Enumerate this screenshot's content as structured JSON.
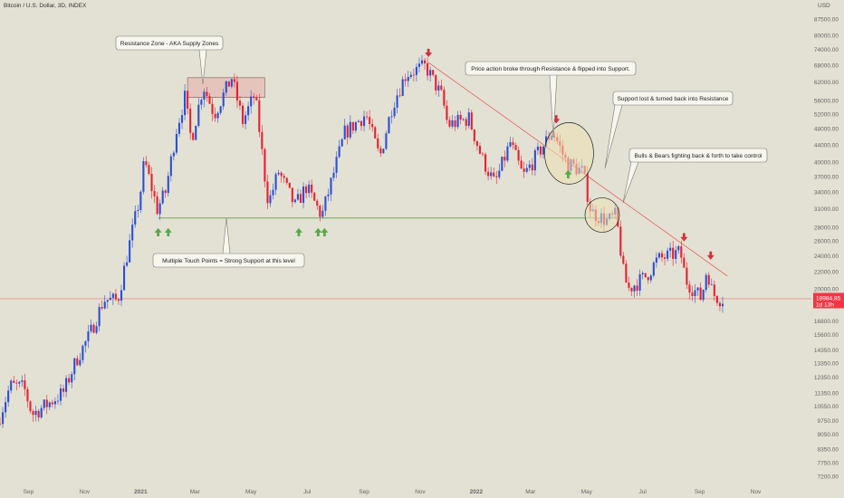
{
  "header": {
    "title": "Bitcoin / U.S. Dollar, 3D, INDEX",
    "currency": "USD"
  },
  "colors": {
    "background": "#e3e1d3",
    "up": "#2a4fd6",
    "down": "#e8202f",
    "support_line": "#5aa44b",
    "trend_line": "#e05555",
    "supply_zone": "#e6b9b4",
    "zone_circle": "#ece2b3",
    "arrow_up": "#56a94a",
    "arrow_down": "#d32f3a",
    "price_tag": "#f23645"
  },
  "price_tag": {
    "price": "18984.85",
    "countdown": "1d 13h"
  },
  "annotations": {
    "supply": "Resistance Zone - AKA Supply Zones",
    "support": "Multiple Touch Points = Strong Support at this level",
    "broke": "Price action broke through Resistance & flipped into Support.",
    "lost": "Support lost & turned back into Resistance",
    "fight": "Bulls & Bears fighting back & forth to take control"
  },
  "chart_data": {
    "type": "candlestick",
    "title": "Bitcoin / U.S. Dollar, 3D, INDEX",
    "y_scale": "log",
    "ylabel": "USD",
    "ylim": [
      6800,
      98000
    ],
    "x_ticks": [
      "Sep",
      "Nov",
      "2021",
      "Mar",
      "May",
      "Jul",
      "Sep",
      "Nov",
      "2022",
      "Mar",
      "May",
      "Jul",
      "Sep",
      "Nov"
    ],
    "y_ticks": [
      "87500.00",
      "80000.00",
      "74000.00",
      "68000.00",
      "62000.00",
      "56000.00",
      "52000.00",
      "48000.00",
      "44000.00",
      "40000.00",
      "37000.00",
      "34000.00",
      "31000.00",
      "28000.00",
      "26000.00",
      "24000.00",
      "22000.00",
      "20000.00",
      "18700.00",
      "16800.00",
      "15600.00",
      "14350.00",
      "13350.00",
      "12350.00",
      "11350.00",
      "10550.00",
      "9750.00",
      "9050.00",
      "8350.00",
      "7750.00",
      "7200.00"
    ],
    "support_level": 29500,
    "supply_zone": {
      "start": "2021-02-21",
      "end": "2021-05-16",
      "low": 57000,
      "high": 63500
    },
    "trendline": {
      "from": {
        "date": "2021-11-10",
        "price": 69000
      },
      "to": {
        "date": "2022-10-01",
        "price": 21500
      }
    },
    "last_price": 18984.85,
    "down_arrows": [
      {
        "date": "2021-11-10",
        "price": 69000
      },
      {
        "date": "2022-03-29",
        "price": 48000
      },
      {
        "date": "2022-08-15",
        "price": 25200
      },
      {
        "date": "2022-09-13",
        "price": 22800
      }
    ],
    "up_arrows": [
      {
        "date": "2021-01-20",
        "price": 29500
      },
      {
        "date": "2021-01-31",
        "price": 29500
      },
      {
        "date": "2021-06-22",
        "price": 29500
      },
      {
        "date": "2021-07-13",
        "price": 29500
      },
      {
        "date": "2021-07-20",
        "price": 29500
      },
      {
        "date": "2022-04-11",
        "price": 40500
      }
    ],
    "circles": [
      {
        "date": "2022-04-12",
        "price": 42000
      },
      {
        "date": "2022-05-18",
        "price": 30000
      }
    ],
    "path_anchors": [
      [
        "2020-08-01",
        9600
      ],
      [
        "2020-08-15",
        11800
      ],
      [
        "2020-08-30",
        11700
      ],
      [
        "2020-09-08",
        10100
      ],
      [
        "2020-09-28",
        10800
      ],
      [
        "2020-10-12",
        11400
      ],
      [
        "2020-10-26",
        13600
      ],
      [
        "2020-11-09",
        15500
      ],
      [
        "2020-11-25",
        18900
      ],
      [
        "2020-12-10",
        18800
      ],
      [
        "2020-12-20",
        24000
      ],
      [
        "2021-01-03",
        33000
      ],
      [
        "2021-01-08",
        40500
      ],
      [
        "2021-01-22",
        31000
      ],
      [
        "2021-01-31",
        34000
      ],
      [
        "2021-02-12",
        48000
      ],
      [
        "2021-02-21",
        57000
      ],
      [
        "2021-02-28",
        45000
      ],
      [
        "2021-03-13",
        61000
      ],
      [
        "2021-03-25",
        52000
      ],
      [
        "2021-04-13",
        63500
      ],
      [
        "2021-04-25",
        50000
      ],
      [
        "2021-05-08",
        58000
      ],
      [
        "2021-05-12",
        50000
      ],
      [
        "2021-05-19",
        37000
      ],
      [
        "2021-05-23",
        32000
      ],
      [
        "2021-06-03",
        38000
      ],
      [
        "2021-06-21",
        31500
      ],
      [
        "2021-07-03",
        35000
      ],
      [
        "2021-07-20",
        29800
      ],
      [
        "2021-08-14",
        47000
      ],
      [
        "2021-09-06",
        52000
      ],
      [
        "2021-09-21",
        41000
      ],
      [
        "2021-10-05",
        55000
      ],
      [
        "2021-10-20",
        65000
      ],
      [
        "2021-11-10",
        67500
      ],
      [
        "2021-11-28",
        57000
      ],
      [
        "2021-12-04",
        49000
      ],
      [
        "2021-12-27",
        50800
      ],
      [
        "2022-01-10",
        41000
      ],
      [
        "2022-01-24",
        35500
      ],
      [
        "2022-02-10",
        44500
      ],
      [
        "2022-02-24",
        37000
      ],
      [
        "2022-03-28",
        47500
      ],
      [
        "2022-04-12",
        40000
      ],
      [
        "2022-04-30",
        38000
      ],
      [
        "2022-05-09",
        30500
      ],
      [
        "2022-05-27",
        29000
      ],
      [
        "2022-06-05",
        30000
      ],
      [
        "2022-06-13",
        22000
      ],
      [
        "2022-06-18",
        20000
      ],
      [
        "2022-07-08",
        21500
      ],
      [
        "2022-07-20",
        23500
      ],
      [
        "2022-08-14",
        24500
      ],
      [
        "2022-08-20",
        21000
      ],
      [
        "2022-09-06",
        19000
      ],
      [
        "2022-09-12",
        22500
      ],
      [
        "2022-09-18",
        19500
      ],
      [
        "2022-09-26",
        19000
      ]
    ]
  }
}
